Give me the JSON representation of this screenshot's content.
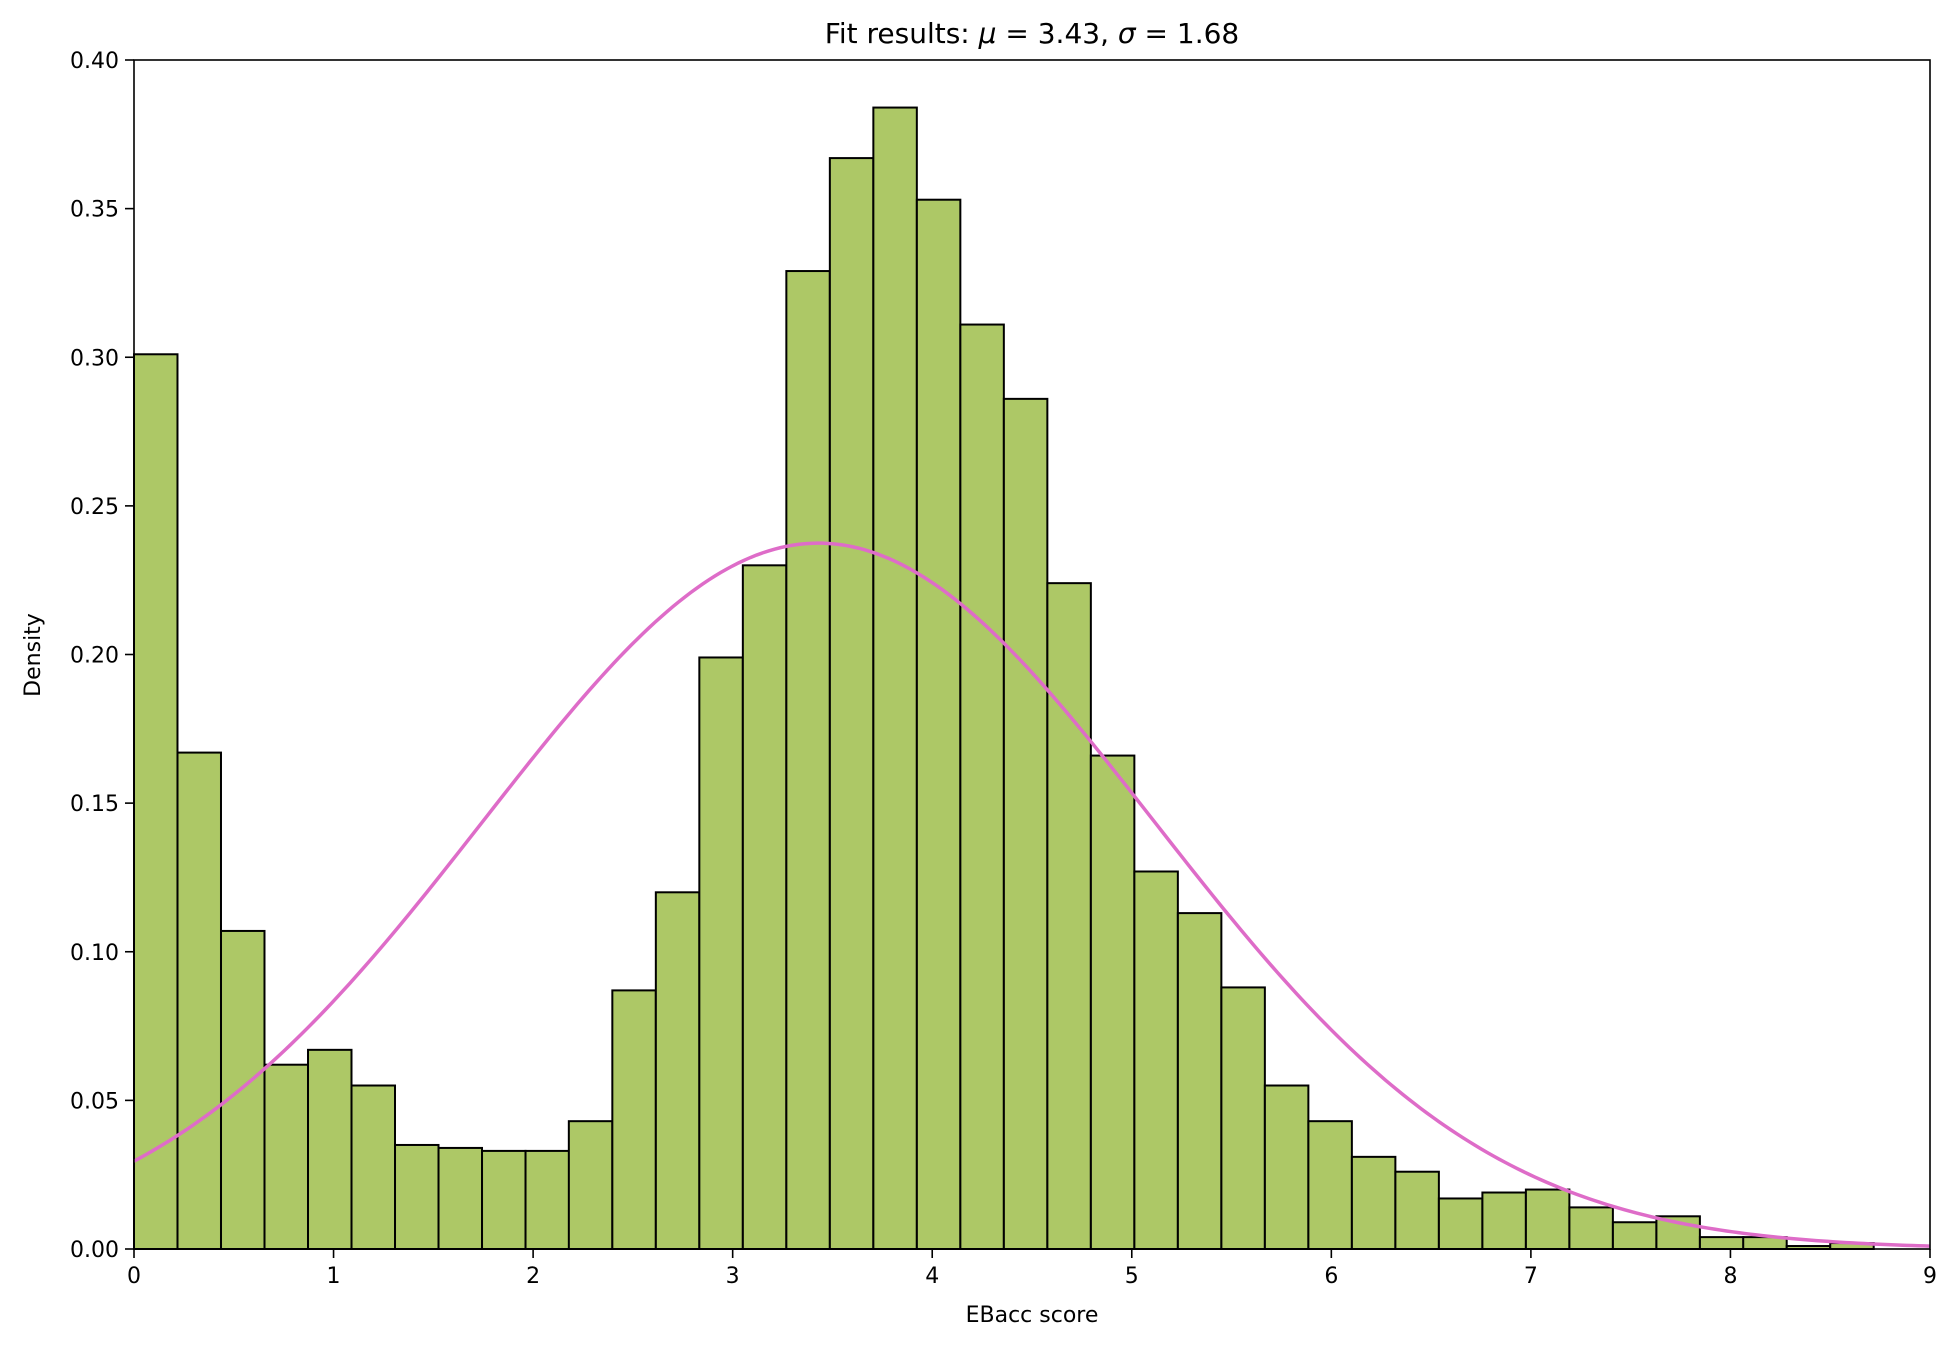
{
  "chart_data": {
    "type": "bar",
    "title_prefix": "Fit results: ",
    "title_mu_symbol": "μ",
    "title_mu_text": " = 3.43,  ",
    "title_sigma_symbol": "σ",
    "title_sigma_text": " = 1.68",
    "xlabel": "EBacc score",
    "ylabel": "Density",
    "xlim": [
      0,
      9
    ],
    "ylim": [
      0,
      0.4
    ],
    "x_ticks": [
      0,
      1,
      2,
      3,
      4,
      5,
      6,
      7,
      8,
      9
    ],
    "y_ticks": [
      0.0,
      0.05,
      0.1,
      0.15,
      0.2,
      0.25,
      0.3,
      0.35,
      0.4
    ],
    "x_tick_labels": [
      "0",
      "1",
      "2",
      "3",
      "4",
      "5",
      "6",
      "7",
      "8",
      "9"
    ],
    "y_tick_labels": [
      "0.00",
      "0.05",
      "0.10",
      "0.15",
      "0.20",
      "0.25",
      "0.30",
      "0.35",
      "0.40"
    ],
    "grid": false,
    "bin_width": 0.2179,
    "bins": {
      "left_edges": [
        0.0,
        0.218,
        0.436,
        0.654,
        0.872,
        1.09,
        1.308,
        1.526,
        1.744,
        1.962,
        2.179,
        2.397,
        2.615,
        2.833,
        3.051,
        3.269,
        3.487,
        3.705,
        3.923,
        4.141,
        4.359,
        4.577,
        4.795,
        5.013,
        5.231,
        5.449,
        5.667,
        5.885,
        6.103,
        6.321,
        6.539,
        6.757,
        6.975,
        7.193,
        7.411,
        7.629,
        7.847,
        8.064,
        8.282,
        8.5
      ],
      "values": [
        0.301,
        0.167,
        0.107,
        0.062,
        0.067,
        0.055,
        0.035,
        0.034,
        0.033,
        0.033,
        0.043,
        0.087,
        0.12,
        0.199,
        0.23,
        0.329,
        0.367,
        0.384,
        0.353,
        0.311,
        0.286,
        0.224,
        0.166,
        0.127,
        0.113,
        0.088,
        0.055,
        0.043,
        0.031,
        0.026,
        0.017,
        0.019,
        0.02,
        0.014,
        0.009,
        0.011,
        0.004,
        0.004,
        0.001,
        0.002
      ]
    },
    "fit_curve": {
      "mu": 3.43,
      "sigma": 1.68,
      "x_range": [
        0,
        9
      ]
    },
    "colors": {
      "bar_fill": "#adc866",
      "bar_edge": "#000000",
      "curve": "#de6cc8"
    }
  }
}
